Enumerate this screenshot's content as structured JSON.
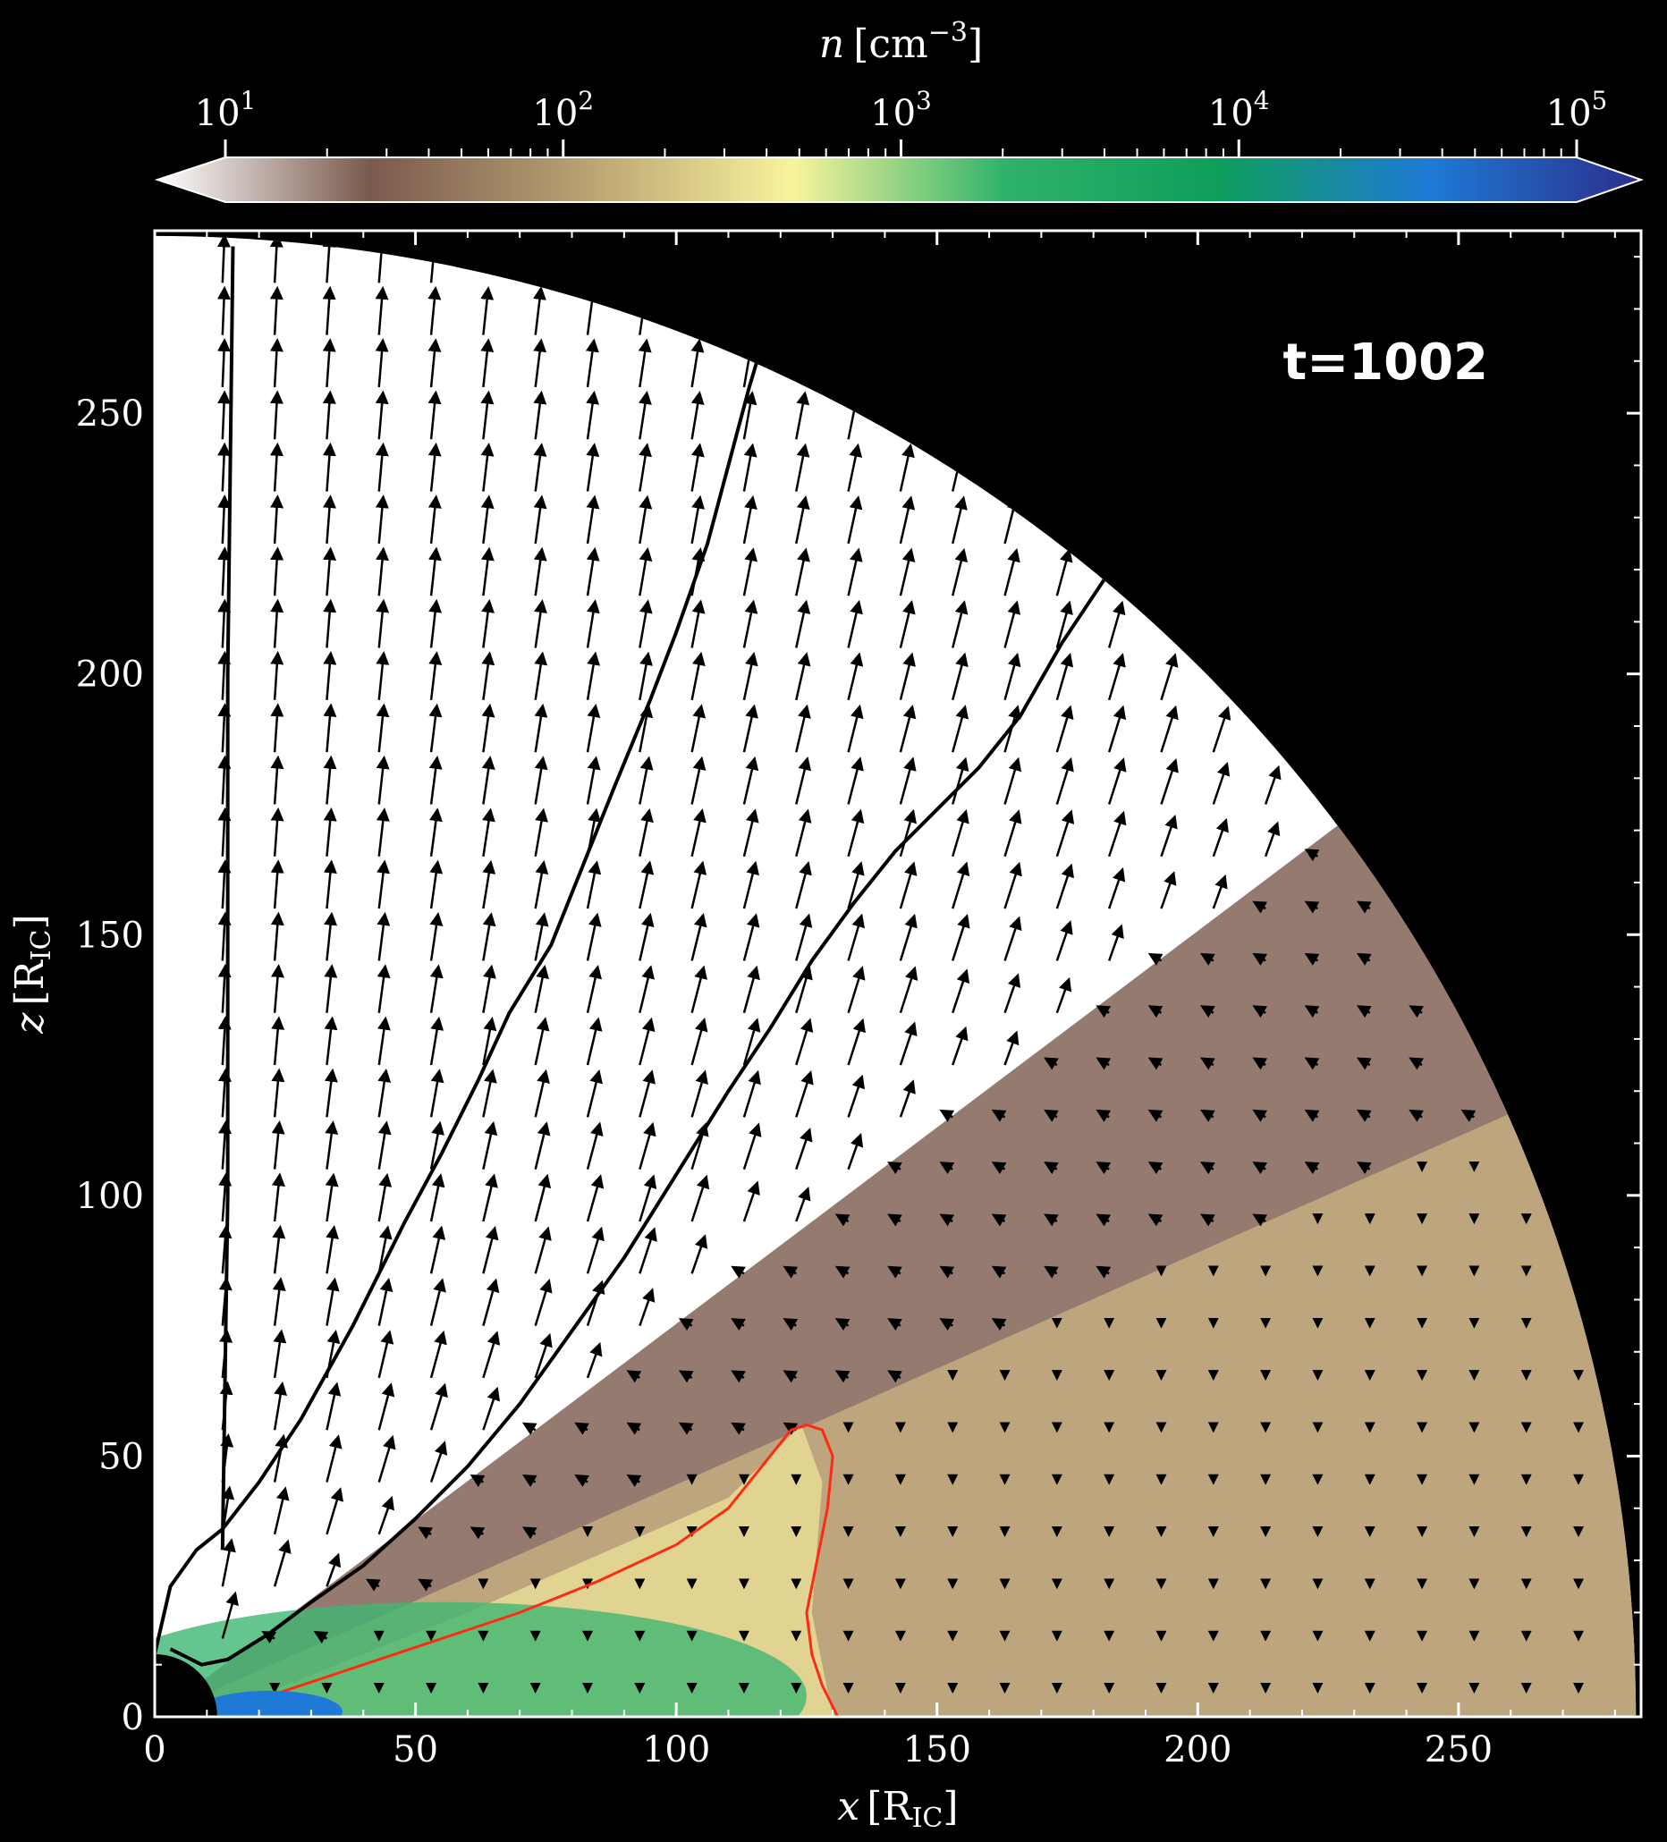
{
  "chart_data": {
    "type": "heatmap",
    "colorbar": {
      "label_var": "n",
      "label_unit": "[cm",
      "label_exp": "−3",
      "label_close": "]",
      "scale": "log",
      "range": [
        10,
        100000
      ],
      "ticks": [
        {
          "base": "10",
          "exp": "1",
          "value": 10
        },
        {
          "base": "10",
          "exp": "2",
          "value": 100
        },
        {
          "base": "10",
          "exp": "3",
          "value": 1000
        },
        {
          "base": "10",
          "exp": "4",
          "value": 10000
        },
        {
          "base": "10",
          "exp": "5",
          "value": 100000
        }
      ],
      "colors": [
        "#ffffff",
        "#7a5a4e",
        "#b8a070",
        "#f8f49c",
        "#2fb26a",
        "#0f9e5b",
        "#1e7ad6",
        "#2b2f8a"
      ],
      "extend": "both",
      "placement": "top"
    },
    "xaxis": {
      "var": "x",
      "unit": "R",
      "unit_sub": "IC",
      "ticks": [
        0,
        50,
        100,
        150,
        200,
        250
      ],
      "range": [
        0,
        285
      ]
    },
    "yaxis": {
      "var": "z",
      "unit": "R",
      "unit_sub": "IC",
      "ticks": [
        0,
        50,
        100,
        150,
        200,
        250
      ],
      "range": [
        0,
        285
      ]
    },
    "domain": {
      "shape": "quarter-annulus",
      "r_inner": 12,
      "r_outer": 284
    },
    "annotation": "t=1002",
    "streamlines": {
      "color": "#000000",
      "lines": [
        [
          [
            0,
            12
          ],
          [
            3,
            25
          ],
          [
            8,
            32
          ],
          [
            13,
            36
          ],
          [
            20,
            45
          ],
          [
            28,
            57
          ],
          [
            38,
            75
          ],
          [
            48,
            95
          ],
          [
            55,
            108
          ],
          [
            62,
            122
          ],
          [
            68,
            135
          ],
          [
            76,
            148
          ],
          [
            82,
            163
          ],
          [
            88,
            178
          ],
          [
            95,
            195
          ],
          [
            100,
            208
          ],
          [
            106,
            225
          ],
          [
            110,
            240
          ],
          [
            114,
            255
          ],
          [
            117,
            265
          ],
          [
            120,
            276
          ]
        ],
        [
          [
            3,
            13
          ],
          [
            9,
            10
          ],
          [
            14,
            11
          ],
          [
            22,
            16
          ],
          [
            30,
            22
          ],
          [
            40,
            29
          ],
          [
            50,
            38
          ],
          [
            60,
            48
          ],
          [
            70,
            60
          ],
          [
            80,
            74
          ],
          [
            90,
            88
          ],
          [
            100,
            104
          ],
          [
            110,
            120
          ],
          [
            118,
            132
          ],
          [
            126,
            145
          ],
          [
            134,
            156
          ],
          [
            142,
            166
          ],
          [
            150,
            174
          ],
          [
            158,
            182
          ],
          [
            166,
            192
          ],
          [
            174,
            206
          ],
          [
            182,
            218
          ],
          [
            188,
            228
          ],
          [
            194,
            238
          ]
        ],
        [
          [
            13,
            32
          ],
          [
            14,
            100
          ],
          [
            14,
            200
          ],
          [
            15,
            282
          ]
        ]
      ]
    },
    "contour": {
      "color": "#ff2a14",
      "points": [
        [
          12,
          0
        ],
        [
          25,
          5
        ],
        [
          40,
          10
        ],
        [
          55,
          15
        ],
        [
          70,
          20
        ],
        [
          85,
          26
        ],
        [
          100,
          33
        ],
        [
          110,
          40
        ],
        [
          118,
          50
        ],
        [
          122,
          55
        ],
        [
          125,
          56
        ],
        [
          128,
          55
        ],
        [
          130,
          50
        ],
        [
          129,
          40
        ],
        [
          127,
          30
        ],
        [
          125,
          20
        ],
        [
          126,
          12
        ],
        [
          128,
          6
        ],
        [
          130,
          2
        ],
        [
          131,
          0
        ],
        [
          140,
          0
        ],
        [
          160,
          0
        ]
      ]
    },
    "vector_field": {
      "arrow_color": "#000000",
      "grid_step": 10
    }
  }
}
